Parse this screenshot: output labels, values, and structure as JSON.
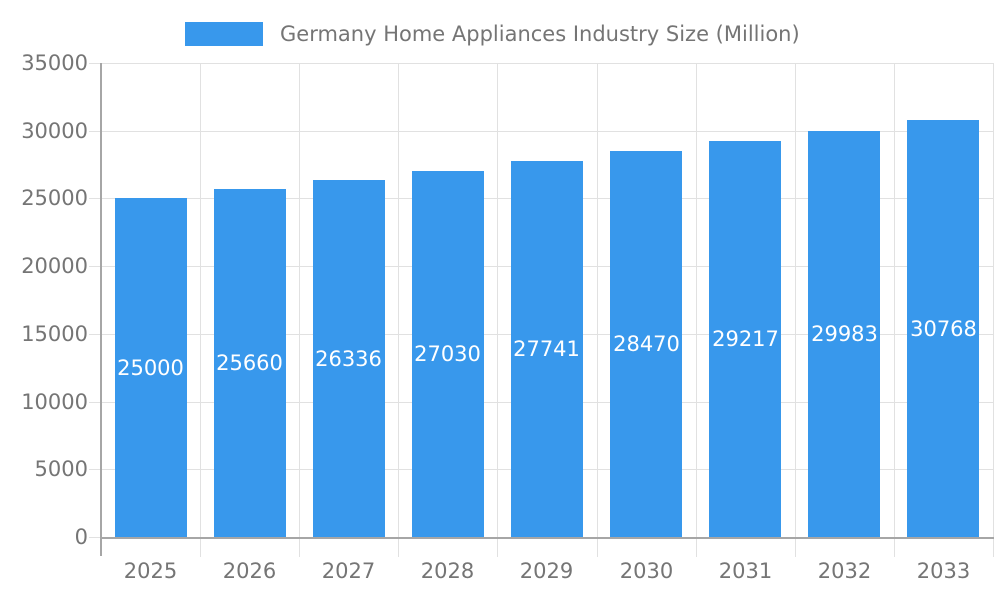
{
  "chart_data": {
    "type": "bar",
    "title": "Germany Home Appliances Industry Size (Million)",
    "categories": [
      "2025",
      "2026",
      "2027",
      "2028",
      "2029",
      "2030",
      "2031",
      "2032",
      "2033"
    ],
    "values": [
      25000,
      25660,
      26336,
      27030,
      27741,
      28470,
      29217,
      29983,
      30768
    ],
    "value_labels": [
      "25000",
      "25660",
      "26336",
      "27030",
      "27741",
      "28470",
      "29217",
      "29983",
      "30768"
    ],
    "xlabel": "",
    "ylabel": "",
    "ylim": [
      0,
      35000
    ],
    "ytick_interval": 5000,
    "ytick_labels": [
      "0",
      "5000",
      "10000",
      "15000",
      "20000",
      "25000",
      "30000",
      "35000"
    ],
    "grid": true,
    "legend_position": "top",
    "legend_label": "Germany Home Appliances Industry Size (Million)",
    "colors": {
      "bar": "#3898ec",
      "bar_value_text": "#ffffff",
      "axis_text": "#757575",
      "axis_line": "#a6a6a6",
      "gridline": "#e1e1e1",
      "background": "#ffffff"
    }
  }
}
